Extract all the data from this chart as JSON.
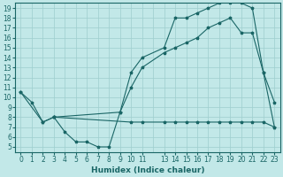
{
  "xlabel": "Humidex (Indice chaleur)",
  "bg_color": "#c2e8e8",
  "grid_color": "#9ecece",
  "line_color": "#1a6666",
  "xlim": [
    -0.5,
    23.5
  ],
  "ylim": [
    4.5,
    19.5
  ],
  "xtick_positions": [
    0,
    1,
    2,
    3,
    4,
    5,
    6,
    7,
    8,
    9,
    10,
    11,
    13,
    14,
    15,
    16,
    17,
    18,
    19,
    20,
    21,
    22,
    23
  ],
  "xtick_labels": [
    "0",
    "1",
    "2",
    "3",
    "4",
    "5",
    "6",
    "7",
    "8",
    "9",
    "10",
    "11",
    "13",
    "14",
    "15",
    "16",
    "17",
    "18",
    "19",
    "20",
    "21",
    "22",
    "23"
  ],
  "yticks": [
    5,
    6,
    7,
    8,
    9,
    10,
    11,
    12,
    13,
    14,
    15,
    16,
    17,
    18,
    19
  ],
  "line1_x": [
    0,
    1,
    2,
    3,
    4,
    5,
    6,
    7,
    8,
    9,
    10,
    11,
    13,
    14,
    15,
    16,
    17,
    18,
    19,
    20,
    21,
    22,
    23
  ],
  "line1_y": [
    10.5,
    9.5,
    7.5,
    8.0,
    6.5,
    5.5,
    5.5,
    5.0,
    5.0,
    8.5,
    12.5,
    14.0,
    15.0,
    18.0,
    18.0,
    18.5,
    19.0,
    19.5,
    19.5,
    19.5,
    19.0,
    12.5,
    9.5
  ],
  "line2_x": [
    0,
    2,
    3,
    9,
    10,
    11,
    13,
    14,
    15,
    16,
    17,
    18,
    19,
    20,
    21,
    22,
    23
  ],
  "line2_y": [
    10.5,
    7.5,
    8.0,
    8.5,
    11.0,
    13.0,
    14.5,
    15.0,
    15.5,
    16.0,
    17.0,
    17.5,
    18.0,
    16.5,
    16.5,
    12.5,
    7.0
  ],
  "line3_x": [
    3,
    10,
    11,
    13,
    14,
    15,
    16,
    17,
    18,
    19,
    20,
    21,
    22,
    23
  ],
  "line3_y": [
    8.0,
    7.5,
    7.5,
    7.5,
    7.5,
    7.5,
    7.5,
    7.5,
    7.5,
    7.5,
    7.5,
    7.5,
    7.5,
    7.0
  ]
}
